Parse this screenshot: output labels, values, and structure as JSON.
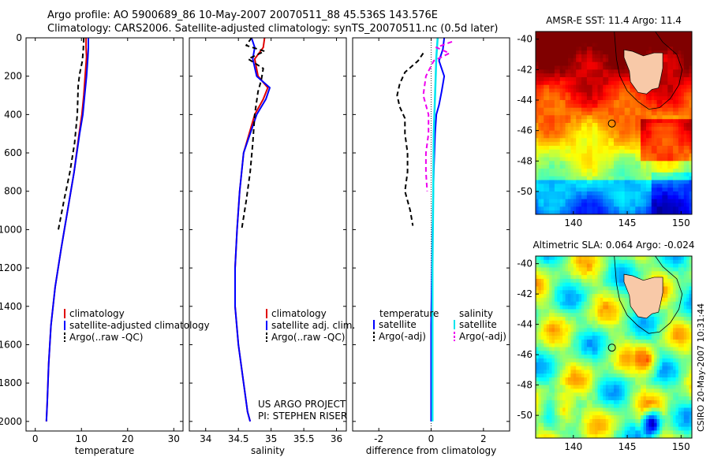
{
  "header": {
    "line1": "Argo profile: AO 5900689_86 10-May-2007 20070511_88 45.536S 143.576E",
    "line2": "Climatology: CARS2006. Satellite-adjusted climatology: synTS_20070511.nc (0.5d later)"
  },
  "colors": {
    "red": "#e00000",
    "blue": "#0000ff",
    "black": "#000000",
    "cyan": "#00e5ee",
    "magenta": "#ee00ee"
  },
  "credit": {
    "line1": "US ARGO PROJECT",
    "line2": "PI: STEPHEN RISER"
  },
  "stamp": "CSIRO 20-May-2007 10:31:44",
  "chart_data": [
    {
      "type": "line",
      "xlabel": "temperature",
      "ylabel": "",
      "xlim": [
        -2,
        32
      ],
      "ylim": [
        2050,
        0
      ],
      "xticks": [
        0,
        10,
        20,
        30
      ],
      "yticks": [
        0,
        200,
        400,
        600,
        800,
        1000,
        1200,
        1400,
        1600,
        1800,
        2000
      ],
      "legend": [
        "climatology",
        "satellite-adjusted climatology",
        "Argo(..raw -QC)"
      ],
      "series": [
        {
          "name": "climatology",
          "color": "red",
          "dash": false,
          "x": [
            11.0,
            11.0,
            11.1,
            10.8,
            10.5,
            10.1,
            9.5,
            8.4,
            7.0,
            5.6,
            4.3,
            3.4,
            2.9,
            2.6,
            2.4
          ],
          "y": [
            0,
            50,
            100,
            200,
            300,
            400,
            500,
            700,
            900,
            1100,
            1300,
            1500,
            1700,
            1900,
            2000
          ]
        },
        {
          "name": "satellite-adjusted climatology",
          "color": "blue",
          "dash": false,
          "x": [
            11.5,
            11.5,
            11.4,
            11.1,
            10.7,
            10.3,
            9.6,
            8.4,
            7.0,
            5.6,
            4.3,
            3.4,
            2.9,
            2.6,
            2.4
          ],
          "y": [
            0,
            50,
            100,
            200,
            300,
            400,
            500,
            700,
            900,
            1100,
            1300,
            1500,
            1700,
            1900,
            2000
          ]
        },
        {
          "name": "Argo(..raw -QC)",
          "color": "black",
          "dash": true,
          "x": [
            10.5,
            10.4,
            10.2,
            9.6,
            9.3,
            9.1,
            8.5,
            7.5,
            6.2,
            5.0
          ],
          "y": [
            0,
            60,
            120,
            190,
            250,
            400,
            550,
            700,
            850,
            1000
          ]
        }
      ]
    },
    {
      "type": "line",
      "xlabel": "salinity",
      "ylabel": "",
      "xlim": [
        33.75,
        36.15
      ],
      "ylim": [
        2050,
        0
      ],
      "xticks": [
        34,
        34.5,
        35,
        35.5,
        36
      ],
      "yticks": [],
      "legend": [
        "climatology",
        "satellite adj. clim.",
        "Argo(..raw -QC)"
      ],
      "credit": [
        "US ARGO PROJECT",
        "PI: STEPHEN RISER"
      ],
      "series": [
        {
          "name": "climatology",
          "color": "red",
          "dash": false,
          "x": [
            34.9,
            34.88,
            34.75,
            34.8,
            34.95,
            34.88,
            34.75,
            34.58,
            34.52,
            34.48,
            34.45,
            34.45,
            34.5,
            34.58,
            34.64,
            34.68
          ],
          "y": [
            0,
            50,
            110,
            200,
            260,
            320,
            400,
            600,
            800,
            1000,
            1200,
            1400,
            1600,
            1800,
            1950,
            2000
          ]
        },
        {
          "name": "satellite adj. clim.",
          "color": "blue",
          "dash": false,
          "x": [
            34.7,
            34.75,
            34.72,
            34.78,
            34.98,
            34.92,
            34.78,
            34.58,
            34.52,
            34.48,
            34.45,
            34.45,
            34.5,
            34.58,
            34.64,
            34.68
          ],
          "y": [
            0,
            50,
            110,
            200,
            260,
            320,
            400,
            600,
            800,
            1000,
            1200,
            1400,
            1600,
            1800,
            1950,
            2000
          ]
        },
        {
          "name": "Argo(..raw -QC)",
          "color": "black",
          "dash": true,
          "x": [
            34.7,
            34.62,
            34.9,
            34.65,
            34.88,
            34.85,
            34.8,
            34.75,
            34.72,
            34.68,
            34.62,
            34.55
          ],
          "y": [
            0,
            40,
            70,
            110,
            160,
            220,
            280,
            400,
            550,
            700,
            850,
            1000
          ]
        }
      ]
    },
    {
      "type": "line",
      "xlabel": "difference from climatology",
      "ylabel": "",
      "xlim": [
        -3.0,
        3.0
      ],
      "ylim": [
        2050,
        0
      ],
      "xticks": [
        -2,
        0,
        2
      ],
      "yticks": [],
      "legend_groups": [
        {
          "title": "temperature",
          "items": [
            "satellite",
            "Argo(-adj)"
          ]
        },
        {
          "title": "salinity",
          "items": [
            "satellite",
            "Argo(-adj)"
          ]
        }
      ],
      "series": [
        {
          "name": "temperature satellite",
          "color": "blue",
          "dash": false,
          "x": [
            0.5,
            0.45,
            0.3,
            0.5,
            0.4,
            0.3,
            0.2,
            0.15,
            0.1,
            0.05,
            0.0,
            0.0
          ],
          "y": [
            0,
            60,
            120,
            200,
            280,
            350,
            400,
            500,
            700,
            1000,
            1500,
            2000
          ]
        },
        {
          "name": "temperature Argo(-adj)",
          "color": "black",
          "dash": true,
          "x": [
            -0.3,
            -0.5,
            -1.0,
            -1.2,
            -1.3,
            -1.2,
            -1.0,
            -1.0,
            -0.9,
            -0.9,
            -1.0,
            -0.8,
            -0.7
          ],
          "y": [
            80,
            120,
            180,
            240,
            300,
            360,
            420,
            500,
            600,
            700,
            800,
            900,
            980
          ]
        },
        {
          "name": "salinity satellite",
          "color": "cyan",
          "dash": false,
          "x": [
            0.25,
            0.2,
            0.15,
            0.1,
            0.08,
            0.05,
            0.05
          ],
          "y": [
            0,
            100,
            300,
            500,
            800,
            1200,
            2000
          ]
        },
        {
          "name": "salinity Argo(-adj)",
          "color": "magenta",
          "dash": true,
          "x": [
            0.8,
            0.2,
            0.7,
            0.1,
            -0.2,
            -0.3,
            -0.1,
            -0.1,
            -0.2,
            -0.2,
            -0.15
          ],
          "y": [
            20,
            50,
            80,
            120,
            200,
            300,
            400,
            500,
            600,
            700,
            800
          ]
        }
      ]
    },
    {
      "type": "heatmap",
      "title": "AMSR-E SST: 11.4 Argo: 11.4",
      "xlim": [
        136.5,
        151
      ],
      "ylim": [
        -51.5,
        -39.5
      ],
      "xticks": [
        140,
        145,
        150
      ],
      "yticks": [
        -40,
        -42,
        -44,
        -46,
        -48,
        -50
      ],
      "marker": {
        "lon": 143.576,
        "lat": -45.536
      }
    },
    {
      "type": "heatmap",
      "title": "Altimetric SLA: 0.064 Argo: -0.024",
      "xlim": [
        136.5,
        151
      ],
      "ylim": [
        -51.5,
        -39.5
      ],
      "xticks": [
        140,
        145,
        150
      ],
      "yticks": [
        -40,
        -42,
        -44,
        -46,
        -48,
        -50
      ],
      "marker": {
        "lon": 143.576,
        "lat": -45.536
      }
    }
  ]
}
